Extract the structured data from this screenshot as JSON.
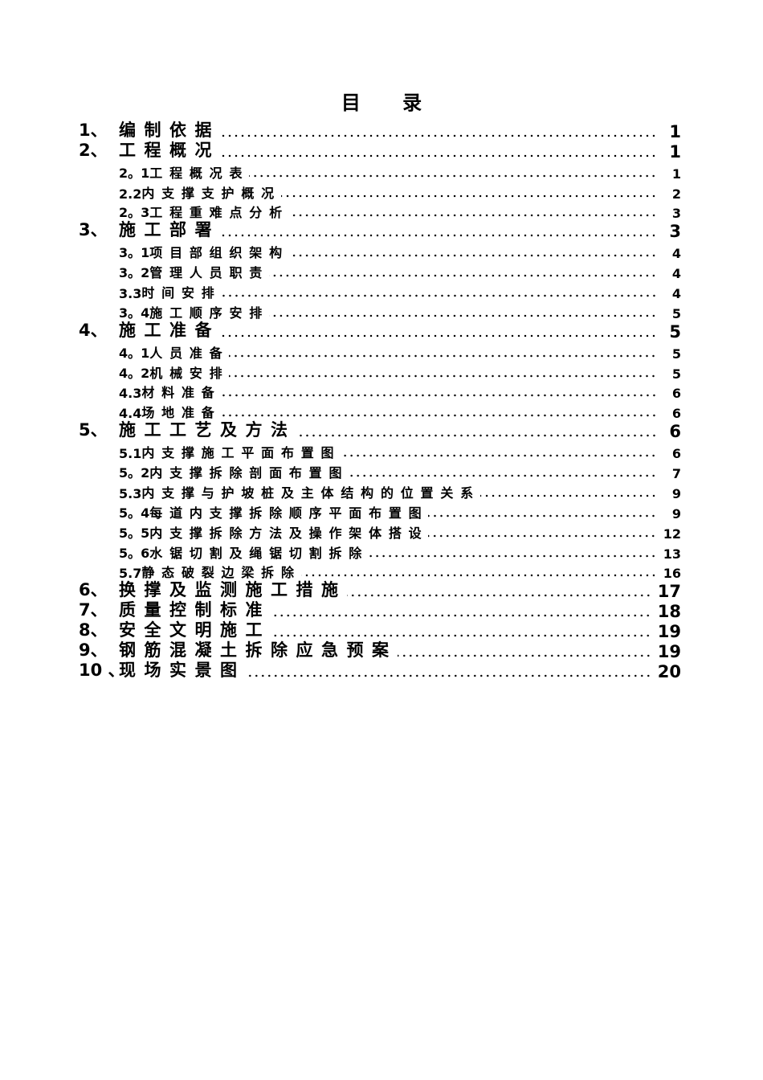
{
  "title": "目 录",
  "toc": [
    {
      "num": "1、",
      "text": "编制依据",
      "page": "1",
      "level": 1
    },
    {
      "num": "2、",
      "text": "工程概况",
      "page": "1",
      "level": 1
    },
    {
      "num": "2。1",
      "text": "工程概况表",
      "page": "1",
      "level": 2
    },
    {
      "num": "2.2",
      "text": "内支撑支护概况",
      "page": "2",
      "level": 2
    },
    {
      "num": "2。3",
      "text": "工程重难点分析",
      "page": "3",
      "level": 2
    },
    {
      "num": "3、",
      "text": "施工部署",
      "page": "3",
      "level": 1
    },
    {
      "num": "3。1",
      "text": "项目部组织架构",
      "page": "4",
      "level": 2
    },
    {
      "num": "3。2",
      "text": "管理人员职责",
      "page": "4",
      "level": 2
    },
    {
      "num": "3.3",
      "text": "时间安排",
      "page": "4",
      "level": 2
    },
    {
      "num": "3。4",
      "text": "施工顺序安排",
      "page": "5",
      "level": 2
    },
    {
      "num": "4、",
      "text": "施工准备",
      "page": "5",
      "level": 1
    },
    {
      "num": "4。1",
      "text": "人员准备",
      "page": "5",
      "level": 2
    },
    {
      "num": "4。2",
      "text": "机械安排",
      "page": "5",
      "level": 2
    },
    {
      "num": "4.3",
      "text": "材料准备",
      "page": "6",
      "level": 2
    },
    {
      "num": "4.4",
      "text": "场地准备",
      "page": "6",
      "level": 2
    },
    {
      "num": "5、",
      "text": "施工工艺及方法",
      "page": "6",
      "level": 1
    },
    {
      "num": "5.1",
      "text": "内支撑施工平面布置图",
      "page": "6",
      "level": 2
    },
    {
      "num": "5。2",
      "text": "内支撑拆除剖面布置图",
      "page": "7",
      "level": 2
    },
    {
      "num": "5.3",
      "text": "内支撑与护坡桩及主体结构的位置关系",
      "page": "9",
      "level": 2
    },
    {
      "num": "5。4",
      "text": "每道内支撑拆除顺序平面布置图",
      "page": "9",
      "level": 2
    },
    {
      "num": "5。5",
      "text": "内支撑拆除方法及操作架体搭设",
      "page": "12",
      "level": 2
    },
    {
      "num": "5。6",
      "text": "水锯切割及绳锯切割拆除",
      "page": "13",
      "level": 2
    },
    {
      "num": "5.7",
      "text": "静态破裂边梁拆除",
      "page": "16",
      "level": 2
    },
    {
      "num": "6、",
      "text": "换撑及监测施工措施",
      "page": "17",
      "level": 1
    },
    {
      "num": "7、",
      "text": "质量控制标准",
      "page": "18",
      "level": 1
    },
    {
      "num": "8、",
      "text": "安全文明施工",
      "page": "19",
      "level": 1
    },
    {
      "num": "9、",
      "text": "钢筋混凝土拆除应急预案",
      "page": "19",
      "level": 1
    },
    {
      "num": "10 、",
      "text": "现场实景图",
      "page": "20",
      "level": 1
    }
  ]
}
